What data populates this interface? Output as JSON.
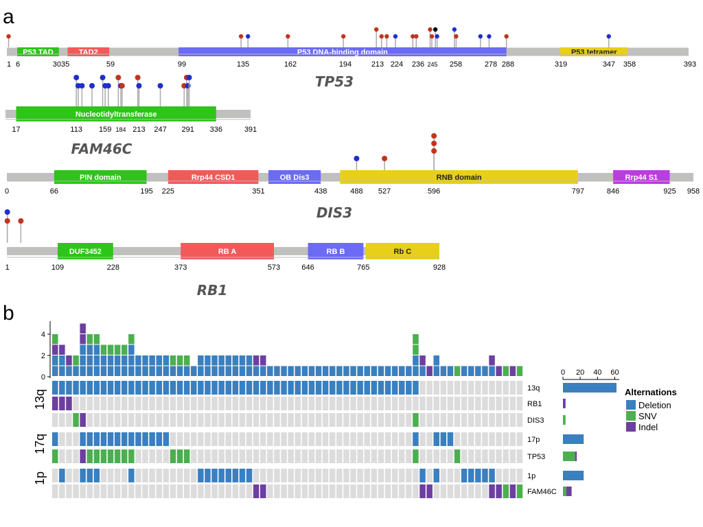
{
  "panel_a_letter": "a",
  "panel_b_letter": "b",
  "colors": {
    "backbone": "#c0c0be",
    "deletion": "#3a7fbf",
    "snv": "#4caf4f",
    "indel": "#6d3fa0",
    "empty": "#dcdcdc",
    "lollipop_red": "#c0351c",
    "lollipop_blue": "#1f2fcc",
    "lollipop_black": "#000000"
  },
  "proteins": [
    {
      "gene": "TP53",
      "length": 393,
      "domains": [
        {
          "label": "P53 TAD",
          "start": 6,
          "end": 30,
          "color": "#2ec41a"
        },
        {
          "label": "TAD2",
          "start": 35,
          "end": 59,
          "color": "#f25a5a"
        },
        {
          "label": "P53 DNA-binding domain",
          "start": 99,
          "end": 288,
          "color": "#6b6bf5"
        },
        {
          "label": "P53 tetramer",
          "start": 319,
          "end": 358,
          "color": "#e8cf1a",
          "dark": true
        }
      ],
      "ticks": [
        "1",
        "6",
        "3035",
        "59",
        "99",
        "135",
        "162",
        "194",
        "213",
        "224",
        "236",
        "245",
        "258",
        "278",
        "288",
        "319",
        "347",
        "358",
        "393"
      ],
      "mutations": [
        {
          "pos": 1,
          "color": "red",
          "stack": 1
        },
        {
          "pos": 135,
          "color": "red",
          "stack": 1
        },
        {
          "pos": 139,
          "color": "blue",
          "stack": 1
        },
        {
          "pos": 162,
          "color": "red",
          "stack": 1
        },
        {
          "pos": 194,
          "color": "red",
          "stack": 1
        },
        {
          "pos": 213,
          "color": "red",
          "stack": 2
        },
        {
          "pos": 216,
          "color": "red",
          "stack": 1
        },
        {
          "pos": 219,
          "color": "red",
          "stack": 1
        },
        {
          "pos": 224,
          "color": "blue",
          "stack": 1
        },
        {
          "pos": 234,
          "color": "red",
          "stack": 1
        },
        {
          "pos": 236,
          "color": "red",
          "stack": 1
        },
        {
          "pos": 244,
          "color": "red",
          "stack": 2
        },
        {
          "pos": 245,
          "color": "red",
          "stack": 1
        },
        {
          "pos": 247,
          "color": "black",
          "stack": 2
        },
        {
          "pos": 248,
          "color": "blue",
          "stack": 1
        },
        {
          "pos": 258,
          "color": "blue",
          "stack": 2
        },
        {
          "pos": 259,
          "color": "red",
          "stack": 1
        },
        {
          "pos": 273,
          "color": "blue",
          "stack": 1
        },
        {
          "pos": 278,
          "color": "blue",
          "stack": 1
        },
        {
          "pos": 288,
          "color": "red",
          "stack": 1
        },
        {
          "pos": 347,
          "color": "blue",
          "stack": 1
        }
      ]
    },
    {
      "gene": "FAM46C",
      "length": 391,
      "domains": [
        {
          "label": "Nucleotidyltransferase",
          "start": 17,
          "end": 336,
          "color": "#2ec41a"
        }
      ],
      "ticks": [
        "17",
        "113",
        "159",
        "184",
        "213",
        "247",
        "291",
        "336",
        "391"
      ],
      "mutations": [
        {
          "pos": 113,
          "color": "blue",
          "stack": 3
        },
        {
          "pos": 116,
          "color": "blue",
          "stack": 2
        },
        {
          "pos": 122,
          "color": "blue",
          "stack": 2
        },
        {
          "pos": 138,
          "color": "blue",
          "stack": 2
        },
        {
          "pos": 155,
          "color": "blue",
          "stack": 3
        },
        {
          "pos": 159,
          "color": "blue",
          "stack": 2
        },
        {
          "pos": 164,
          "color": "blue",
          "stack": 2
        },
        {
          "pos": 180,
          "color": "red",
          "stack": 3
        },
        {
          "pos": 184,
          "color": "blue",
          "stack": 2
        },
        {
          "pos": 186,
          "color": "red",
          "stack": 2
        },
        {
          "pos": 211,
          "color": "red",
          "stack": 3
        },
        {
          "pos": 213,
          "color": "blue",
          "stack": 2
        },
        {
          "pos": 247,
          "color": "blue",
          "stack": 2
        },
        {
          "pos": 285,
          "color": "red",
          "stack": 2
        },
        {
          "pos": 289,
          "color": "red",
          "stack": 3
        },
        {
          "pos": 291,
          "color": "blue",
          "stack": 2
        },
        {
          "pos": 293,
          "color": "blue",
          "stack": 3
        }
      ]
    },
    {
      "gene": "DIS3",
      "length": 958,
      "domains": [
        {
          "label": "PIN domain",
          "start": 66,
          "end": 195,
          "color": "#2ec41a"
        },
        {
          "label": "Rrp44 CSD1",
          "start": 225,
          "end": 351,
          "color": "#f25a5a"
        },
        {
          "label": "OB Dis3",
          "start": 365,
          "end": 438,
          "color": "#6b6bf5"
        },
        {
          "label": "RNB domain",
          "start": 465,
          "end": 797,
          "color": "#e8cf1a",
          "dark": true
        },
        {
          "label": "Rrp44 S1",
          "start": 846,
          "end": 925,
          "color": "#bb3ce0"
        }
      ],
      "ticks": [
        "0",
        "66",
        "195",
        "225",
        "351",
        "438",
        "488",
        "527",
        "596",
        "797",
        "846",
        "925",
        "958"
      ],
      "mutations": [
        {
          "pos": 488,
          "color": "blue",
          "stack": 1
        },
        {
          "pos": 527,
          "color": "red",
          "stack": 1
        },
        {
          "pos": 596,
          "color": "red",
          "stack": 4
        },
        {
          "pos": 596,
          "color": "red",
          "stack": 3
        },
        {
          "pos": 596,
          "color": "red",
          "stack": 2
        }
      ]
    },
    {
      "gene": "RB1",
      "length": 928,
      "domains": [
        {
          "label": "DUF3452",
          "start": 109,
          "end": 228,
          "color": "#2ec41a"
        },
        {
          "label": "RB A",
          "start": 373,
          "end": 573,
          "color": "#f25a5a"
        },
        {
          "label": "RB B",
          "start": 646,
          "end": 765,
          "color": "#6b6bf5"
        },
        {
          "label": "Rb C",
          "start": 770,
          "end": 928,
          "color": "#e8cf1a",
          "dark": true
        }
      ],
      "ticks": [
        "1",
        "109",
        "228",
        "373",
        "573",
        "646",
        "765",
        "928"
      ],
      "mutations": [
        {
          "pos": 1,
          "color": "blue",
          "stack": 3
        },
        {
          "pos": 1,
          "color": "red",
          "stack": 2
        },
        {
          "pos": 30,
          "color": "red",
          "stack": 2
        }
      ]
    }
  ],
  "oncoprint": {
    "top_axis_ticks": [
      "0",
      "2",
      "4"
    ],
    "right_axis_ticks": [
      "0",
      "20",
      "40",
      "60"
    ],
    "groups": [
      {
        "label": "13q",
        "rows": [
          "13q",
          "RB1",
          "DIS3"
        ]
      },
      {
        "label": "17q",
        "rows": [
          "17p",
          "TP53"
        ]
      },
      {
        "label": "1p",
        "rows": [
          "1p",
          "FAM46C"
        ]
      }
    ],
    "row_counts": {
      "13q": [
        {
          "type": "deletion",
          "value": 62
        }
      ],
      "RB1": [
        {
          "type": "indel",
          "value": 3
        }
      ],
      "DIS3": [
        {
          "type": "snv",
          "value": 3
        }
      ],
      "17p": [
        {
          "type": "deletion",
          "value": 24
        }
      ],
      "TP53": [
        {
          "type": "snv",
          "value": 14
        },
        {
          "type": "indel",
          "value": 2
        }
      ],
      "1p": [
        {
          "type": "deletion",
          "value": 24
        }
      ],
      "FAM46C": [
        {
          "type": "snv",
          "value": 4
        },
        {
          "type": "indel",
          "value": 6
        }
      ]
    }
  },
  "legend": {
    "title": "Alternations",
    "items": [
      {
        "label": "Deletion",
        "color": "#3a7fbf"
      },
      {
        "label": "SNV",
        "color": "#4caf4f"
      },
      {
        "label": "Indel",
        "color": "#6d3fa0"
      }
    ]
  }
}
